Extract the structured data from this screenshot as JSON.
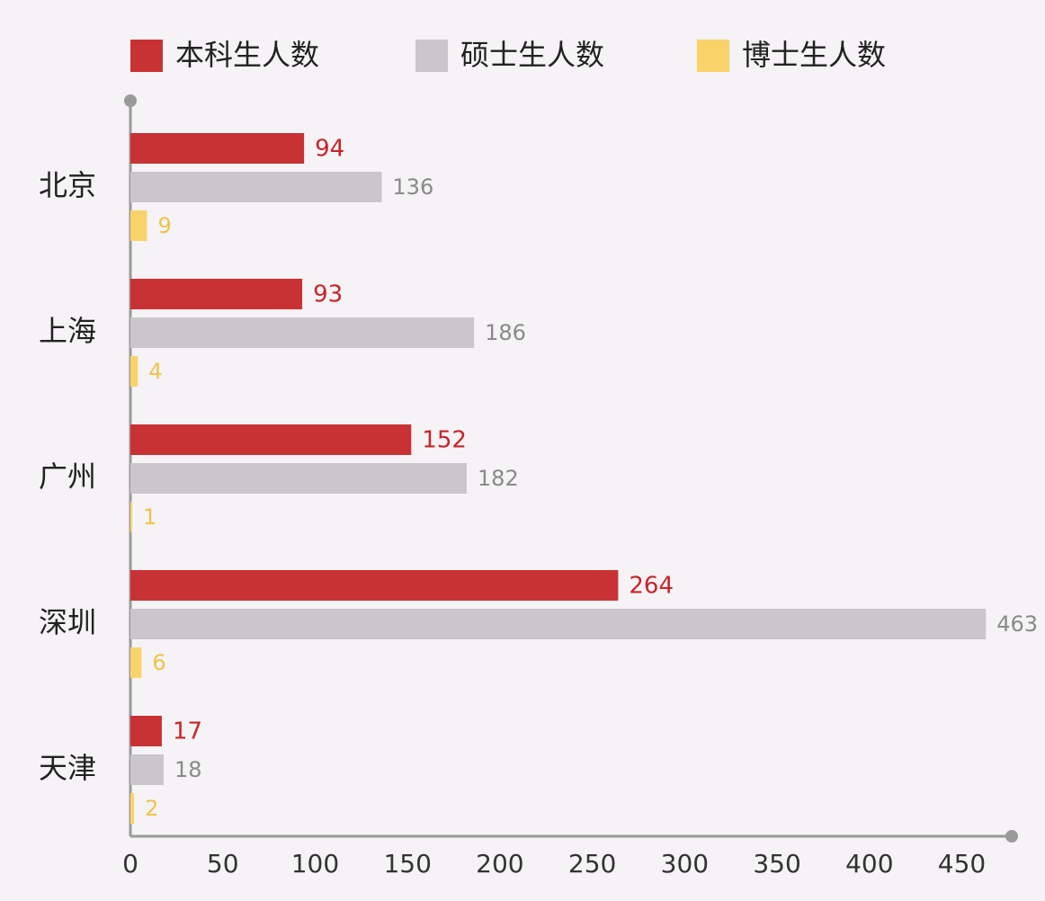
{
  "chart_data": {
    "type": "hbar",
    "categories": [
      "北京",
      "上海",
      "广州",
      "深圳",
      "天津"
    ],
    "series": [
      {
        "name": "本科生人数",
        "color": "#c93234",
        "values": [
          94,
          93,
          152,
          264,
          17
        ]
      },
      {
        "name": "硕士生人数",
        "color": "#c9c7ca",
        "values": [
          136,
          186,
          182,
          463,
          18
        ]
      },
      {
        "name": "博士生人数",
        "color": "#f9d36a",
        "values": [
          9,
          4,
          1,
          6,
          2
        ]
      }
    ],
    "xlim": [
      0,
      477
    ],
    "xticks": [
      0,
      50,
      100,
      150,
      200,
      250,
      300,
      350,
      400,
      450
    ],
    "grid": false
  }
}
